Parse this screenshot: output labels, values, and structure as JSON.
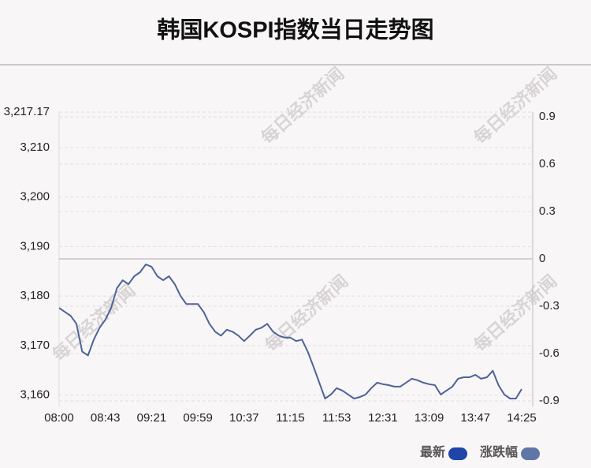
{
  "chart_data": {
    "type": "line",
    "title": "韩国KOSPI指数当日走势图",
    "watermark": "每日经济新闻",
    "categories": [
      "08:00",
      null,
      null,
      null,
      null,
      null,
      null,
      null,
      "08:43",
      null,
      null,
      null,
      null,
      null,
      null,
      null,
      "09:21",
      null,
      null,
      null,
      null,
      null,
      null,
      null,
      "09:59",
      null,
      null,
      null,
      null,
      null,
      null,
      null,
      "10:37",
      null,
      null,
      null,
      null,
      null,
      null,
      null,
      "11:15",
      null,
      null,
      null,
      null,
      null,
      null,
      null,
      "11:53",
      null,
      null,
      null,
      null,
      null,
      null,
      null,
      "12:31",
      null,
      null,
      null,
      null,
      null,
      null,
      null,
      "13:09",
      null,
      null,
      null,
      null,
      null,
      null,
      null,
      "13:47",
      null,
      null,
      null,
      null,
      null,
      null,
      null,
      "14:25"
    ],
    "series": [
      {
        "name": "最新",
        "color": "#4d6396",
        "values": [
          3177.6,
          3176.8,
          3176.0,
          3174.4,
          3168.8,
          3168.0,
          3171.2,
          3173.6,
          3175.2,
          3177.6,
          3181.6,
          3183.2,
          3182.4,
          3184.0,
          3184.8,
          3186.4,
          3185.9,
          3184.0,
          3183.2,
          3184.0,
          3182.4,
          3180.0,
          3178.4,
          3178.4,
          3178.4,
          3176.8,
          3174.4,
          3172.8,
          3172.0,
          3173.2,
          3172.8,
          3172.0,
          3170.9,
          3172.0,
          3173.2,
          3173.6,
          3174.4,
          3172.8,
          3172.0,
          3171.6,
          3171.6,
          3170.9,
          3171.2,
          3168.8,
          3165.7,
          3162.5,
          3159.3,
          3160.1,
          3161.4,
          3160.9,
          3160.1,
          3159.3,
          3159.6,
          3160.1,
          3161.4,
          3162.5,
          3162.2,
          3162.0,
          3161.7,
          3161.7,
          3162.5,
          3163.3,
          3163.0,
          3162.5,
          3162.2,
          3162.0,
          3160.1,
          3160.9,
          3161.7,
          3163.3,
          3163.6,
          3163.6,
          3164.1,
          3163.3,
          3163.6,
          3164.9,
          3162.0,
          3160.1,
          3159.3,
          3159.3,
          3161.2
        ]
      }
    ],
    "legend": [
      {
        "name": "最新",
        "color": "#1f45a8"
      },
      {
        "name": "涨跌幅",
        "color": "#6076a6"
      }
    ],
    "ylim": [
      3157.7,
      3217.17
    ],
    "yticks": [
      {
        "value": 3217.17,
        "label": "3,217.17"
      },
      {
        "value": 3210,
        "label": "3,210"
      },
      {
        "value": 3200,
        "label": "3,200"
      },
      {
        "value": 3190,
        "label": "3,190"
      },
      {
        "value": 3180,
        "label": "3,180"
      },
      {
        "value": 3170,
        "label": "3,170"
      },
      {
        "value": 3160,
        "label": "3,160"
      }
    ],
    "y2lim": [
      -0.935,
      0.93
    ],
    "y2ticks": [
      0.9,
      0.6,
      0.3,
      0,
      -0.3,
      -0.6,
      -0.9
    ],
    "grid": true
  }
}
